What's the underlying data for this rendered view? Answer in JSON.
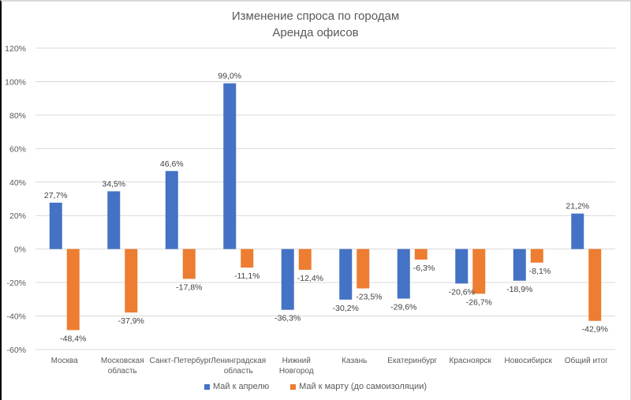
{
  "chart_data": {
    "type": "bar",
    "title": "Изменение спроса по городам",
    "subtitle": "Аренда офисов",
    "categories": [
      [
        "Москва"
      ],
      [
        "Московская",
        "область"
      ],
      [
        "Санкт-Петербург"
      ],
      [
        "Ленинградская",
        "область"
      ],
      [
        "Нижний",
        "Новгород"
      ],
      [
        "Казань"
      ],
      [
        "Екатеринбург"
      ],
      [
        "Красноярск"
      ],
      [
        "Новосибирск"
      ],
      [
        "Общий итог"
      ]
    ],
    "series": [
      {
        "name": "Май к апрелю",
        "color": "#4472c4",
        "values": [
          27.7,
          34.5,
          46.6,
          99.0,
          -36.3,
          -30.2,
          -29.6,
          -20.6,
          -18.9,
          21.2
        ],
        "labels": [
          "27,7%",
          "34,5%",
          "46,6%",
          "99,0%",
          "-36,3%",
          "-30,2%",
          "-29,6%",
          "-20,6%",
          "-18,9%",
          "21,2%"
        ]
      },
      {
        "name": "Май к марту (до самоизоляции)",
        "color": "#ed7d31",
        "values": [
          -48.4,
          -37.9,
          -17.8,
          -11.1,
          -12.4,
          -23.5,
          -6.3,
          -26.7,
          -8.1,
          -42.9
        ],
        "labels": [
          "-48,4%",
          "-37,9%",
          "-17,8%",
          "-11,1%",
          "-12,4%",
          "-23,5%",
          "-6,3%",
          "-26,7%",
          "-8,1%",
          "-42,9%"
        ]
      }
    ],
    "ylim": [
      -60,
      120
    ],
    "yticks": [
      120,
      100,
      80,
      60,
      40,
      20,
      0,
      -20,
      -40,
      -60
    ],
    "ytick_labels": [
      "120%",
      "100%",
      "80%",
      "60%",
      "40%",
      "20%",
      "0%",
      "-20%",
      "-40%",
      "-60%"
    ],
    "xlabel": "",
    "ylabel": "",
    "grid": true,
    "legend": "bottom"
  }
}
